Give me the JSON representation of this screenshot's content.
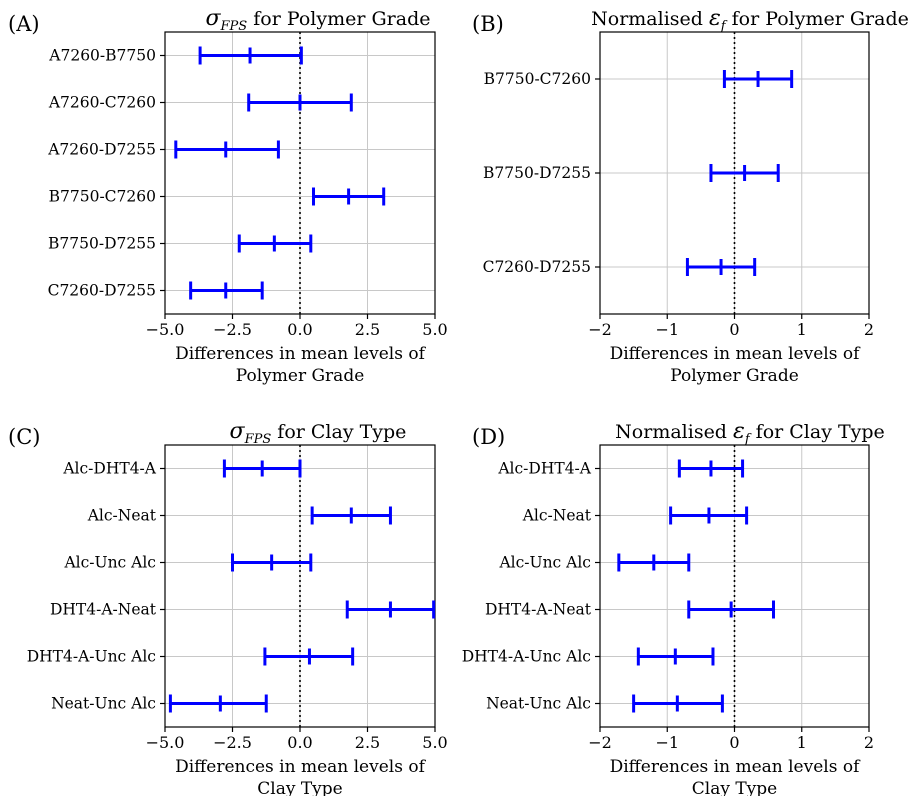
{
  "chart_data": [
    {
      "type": "errorbar",
      "panel_label": "(A)",
      "title": "σFPS for Polymer Grade",
      "title_parts": {
        "symbol": "σ",
        "subscript": "FPS",
        "rest": " for Polymer Grade"
      },
      "xlabel": [
        "Differences in mean levels of",
        "Polymer Grade"
      ],
      "xlim": [
        -5.0,
        5.0
      ],
      "xticks": [
        "−5.0",
        "−2.5",
        "0.0",
        "2.5",
        "5.0"
      ],
      "xtick_values": [
        -5.0,
        -2.5,
        0.0,
        2.5,
        5.0
      ],
      "grid": true,
      "zero_line": "dotted",
      "color": "#0000ff",
      "categories": [
        "A7260-B7750",
        "A7260-C7260",
        "A7260-D7255",
        "B7750-C7260",
        "B7750-D7255",
        "C7260-D7255"
      ],
      "mean": [
        -1.85,
        0.0,
        -2.75,
        1.8,
        -0.95,
        -2.75
      ],
      "lower": [
        -3.7,
        -1.9,
        -4.6,
        0.5,
        -2.25,
        -4.05
      ],
      "upper": [
        0.05,
        1.9,
        -0.8,
        3.1,
        0.4,
        -1.4
      ]
    },
    {
      "type": "errorbar",
      "panel_label": "(B)",
      "title": "Normalised εf for Polymer Grade",
      "title_parts": {
        "prefix": "Normalised ",
        "symbol": "ε",
        "subscript": "f",
        "rest": " for Polymer Grade"
      },
      "xlabel": [
        "Differences in mean levels of",
        "Polymer Grade"
      ],
      "xlim": [
        -2,
        2
      ],
      "xticks": [
        "−2",
        "−1",
        "0",
        "1",
        "2"
      ],
      "xtick_values": [
        -2,
        -1,
        0,
        1,
        2
      ],
      "grid": true,
      "zero_line": "dotted",
      "color": "#0000ff",
      "categories": [
        "B7750-C7260",
        "B7750-D7255",
        "C7260-D7255"
      ],
      "mean": [
        0.35,
        0.15,
        -0.2
      ],
      "lower": [
        -0.15,
        -0.35,
        -0.7
      ],
      "upper": [
        0.85,
        0.65,
        0.3
      ]
    },
    {
      "type": "errorbar",
      "panel_label": "(C)",
      "title": "σFPS for Clay Type",
      "title_parts": {
        "symbol": "σ",
        "subscript": "FPS",
        "rest": " for Clay Type"
      },
      "xlabel": [
        "Differences in mean levels of",
        "Clay Type"
      ],
      "xlim": [
        -5.0,
        5.0
      ],
      "xticks": [
        "−5.0",
        "−2.5",
        "0.0",
        "2.5",
        "5.0"
      ],
      "xtick_values": [
        -5.0,
        -2.5,
        0.0,
        2.5,
        5.0
      ],
      "grid": true,
      "zero_line": "dotted",
      "color": "#0000ff",
      "categories": [
        "Alc-DHT4-A",
        "Alc-Neat",
        "Alc-Unc Alc",
        "DHT4-A-Neat",
        "DHT4-A-Unc Alc",
        "Neat-Unc Alc"
      ],
      "mean": [
        -1.4,
        1.9,
        -1.05,
        3.35,
        0.35,
        -2.95
      ],
      "lower": [
        -2.8,
        0.45,
        -2.5,
        1.75,
        -1.3,
        -4.8
      ],
      "upper": [
        0.0,
        3.35,
        0.4,
        4.95,
        1.95,
        -1.25
      ]
    },
    {
      "type": "errorbar",
      "panel_label": "(D)",
      "title": "Normalised εf for Clay Type",
      "title_parts": {
        "prefix": "Normalised ",
        "symbol": "ε",
        "subscript": "f",
        "rest": " for Clay Type"
      },
      "xlabel": [
        "Differences in mean levels of",
        "Clay Type"
      ],
      "xlim": [
        -2,
        2
      ],
      "xticks": [
        "−2",
        "−1",
        "0",
        "1",
        "2"
      ],
      "xtick_values": [
        -2,
        -1,
        0,
        1,
        2
      ],
      "grid": true,
      "zero_line": "dotted",
      "color": "#0000ff",
      "categories": [
        "Alc-DHT4-A",
        "Alc-Neat",
        "Alc-Unc Alc",
        "DHT4-A-Neat",
        "DHT4-A-Unc Alc",
        "Neat-Unc Alc"
      ],
      "mean": [
        -0.35,
        -0.38,
        -1.2,
        -0.05,
        -0.88,
        -0.85
      ],
      "lower": [
        -0.82,
        -0.95,
        -1.72,
        -0.68,
        -1.43,
        -1.5
      ],
      "upper": [
        0.12,
        0.18,
        -0.68,
        0.58,
        -0.32,
        -0.18
      ]
    }
  ]
}
